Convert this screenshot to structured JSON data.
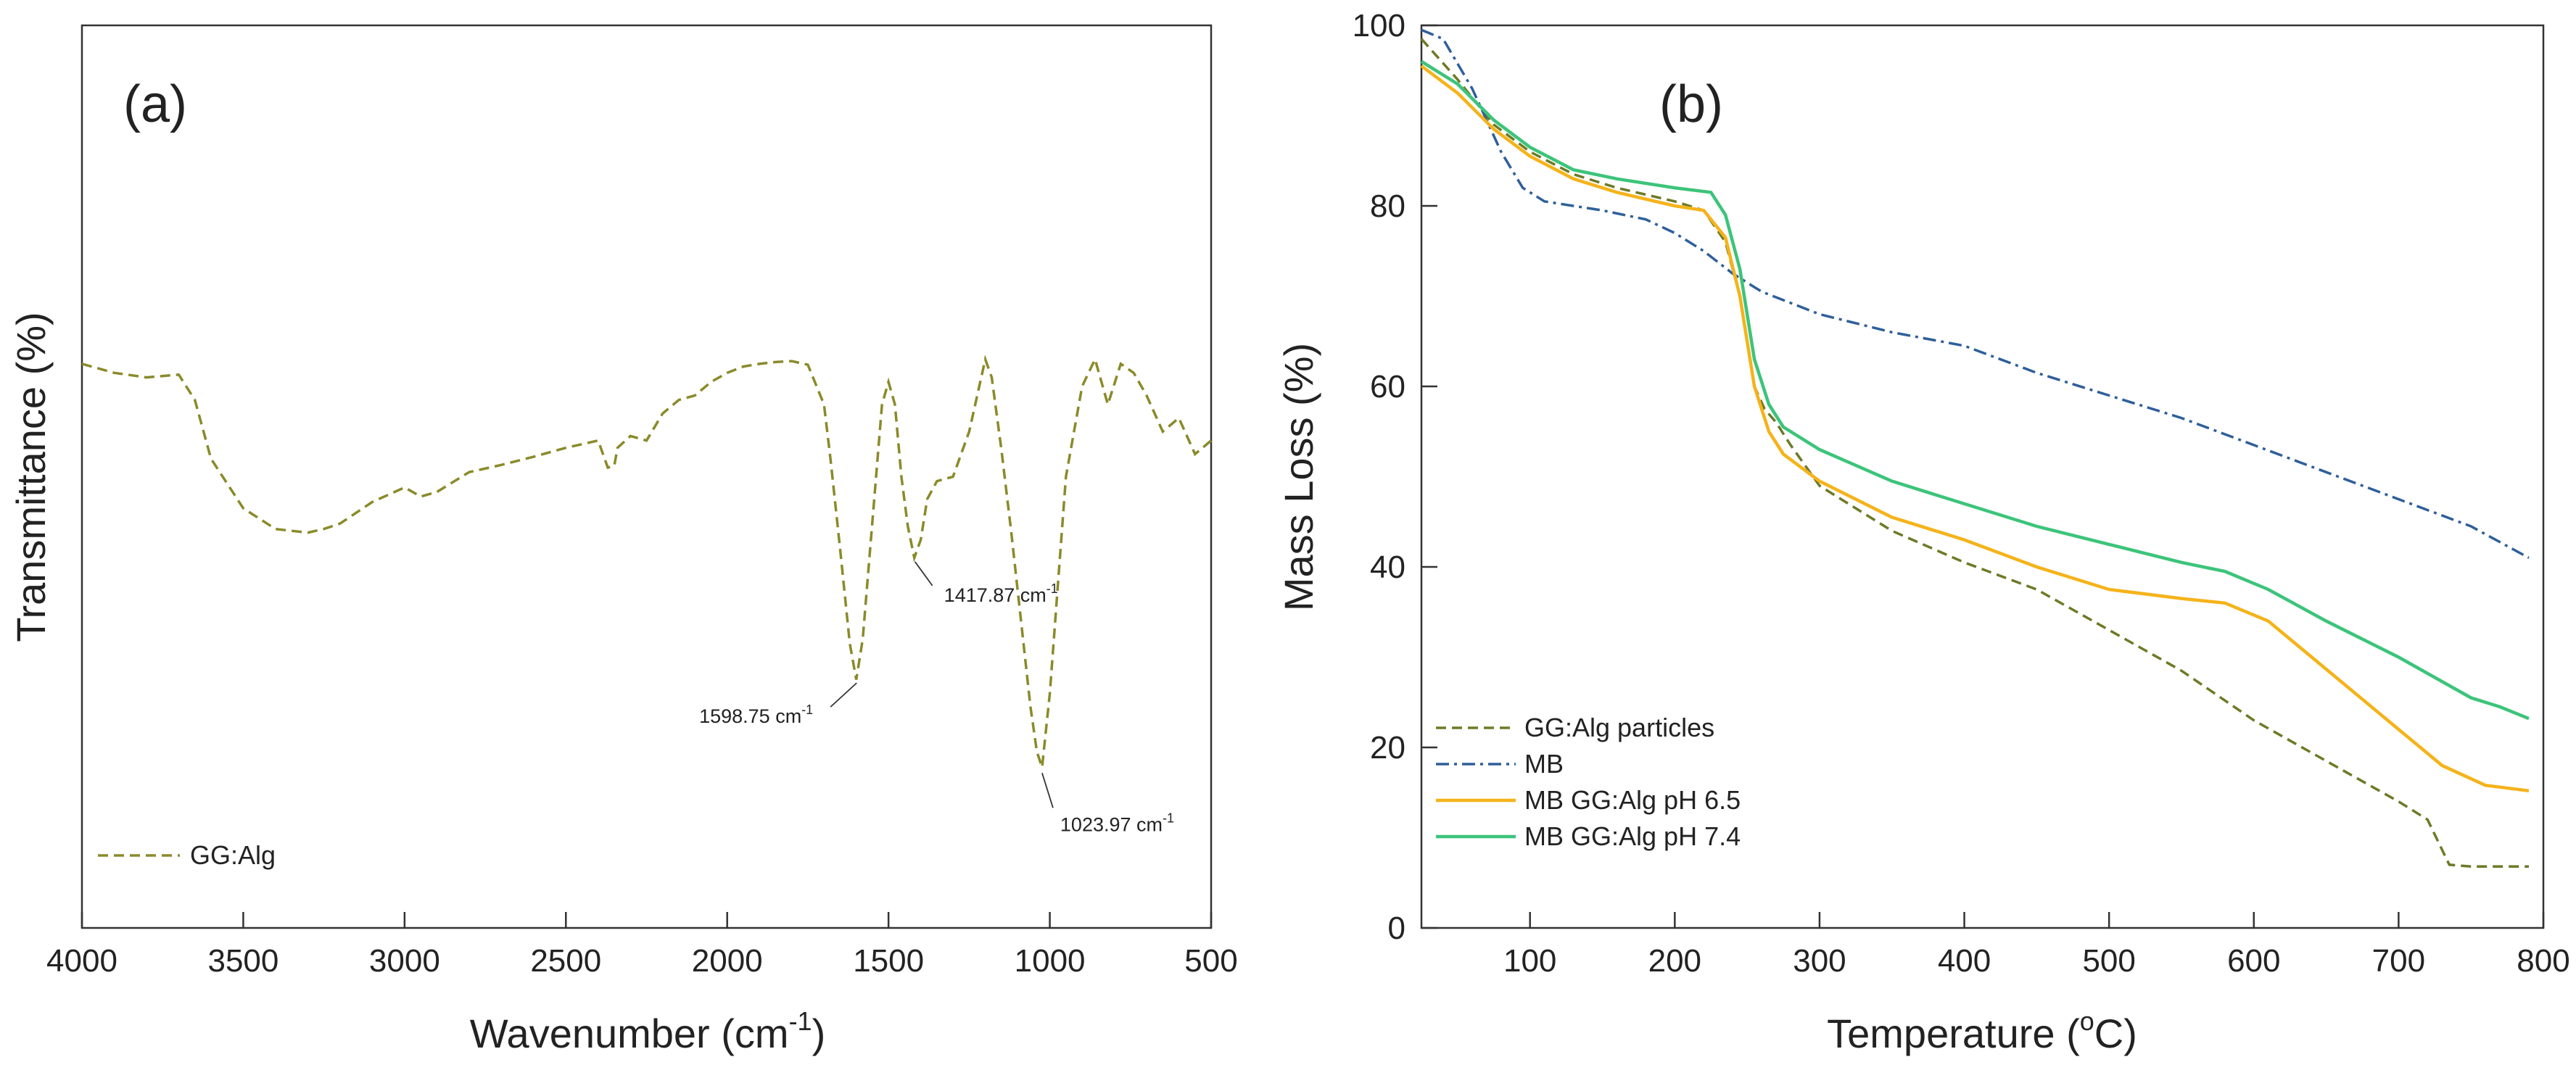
{
  "chart_data": [
    {
      "type": "line",
      "panel_label": "(a)",
      "xlabel": "Wavenumber (cm",
      "xlabel_sup": "-1",
      "xlabel_tail": ")",
      "ylabel": "Transmittance (%)",
      "xlim": [
        4000,
        500
      ],
      "xticks": [
        "4000",
        "3500",
        "3000",
        "2500",
        "2000",
        "1500",
        "1000",
        "500"
      ],
      "y_tick_labels_shown": false,
      "series": [
        {
          "name": "GG:Alg",
          "color": "#8a8a2a",
          "style": "dashed",
          "x": [
            4000,
            3900,
            3800,
            3700,
            3650,
            3600,
            3500,
            3400,
            3300,
            3250,
            3200,
            3100,
            3000,
            2950,
            2900,
            2800,
            2700,
            2600,
            2500,
            2400,
            2370,
            2350,
            2340,
            2300,
            2250,
            2200,
            2150,
            2100,
            2050,
            2000,
            1950,
            1900,
            1850,
            1800,
            1750,
            1700,
            1680,
            1650,
            1620,
            1600,
            1580,
            1550,
            1520,
            1500,
            1480,
            1460,
            1440,
            1420,
            1400,
            1380,
            1350,
            1300,
            1250,
            1200,
            1180,
            1150,
            1120,
            1100,
            1080,
            1060,
            1040,
            1024,
            1000,
            950,
            900,
            860,
            820,
            780,
            740,
            700,
            650,
            600,
            550,
            500
          ],
          "y": [
            62.5,
            61.5,
            61.0,
            61.3,
            58.5,
            52.0,
            46.5,
            44.2,
            43.8,
            44.2,
            44.8,
            47.2,
            48.8,
            47.8,
            48.3,
            50.5,
            51.3,
            52.2,
            53.2,
            54.0,
            51.0,
            51.2,
            53.2,
            54.5,
            54.0,
            57.0,
            58.5,
            59.0,
            60.5,
            61.5,
            62.2,
            62.5,
            62.7,
            62.8,
            62.4,
            58.0,
            52.0,
            42.0,
            31.5,
            27.5,
            32.0,
            45.0,
            58.0,
            60.5,
            58.0,
            50.0,
            44.5,
            41.0,
            43.0,
            47.5,
            49.5,
            50.0,
            55.0,
            63.0,
            61.0,
            53.0,
            44.0,
            37.5,
            31.0,
            24.5,
            19.5,
            17.8,
            26.0,
            50.0,
            60.0,
            63.0,
            58.0,
            62.5,
            61.5,
            59.0,
            55.0,
            56.5,
            52.5,
            54.0
          ]
        }
      ],
      "annotations": [
        {
          "label": "1598.75 cm",
          "sup": "-1",
          "x": 1598.75
        },
        {
          "label": "1417.87 cm",
          "sup": "-1",
          "x": 1417.87
        },
        {
          "label": "1023.97 cm",
          "sup": "-1",
          "x": 1023.97
        }
      ],
      "legend": {
        "placement": "bottom-left",
        "entries": [
          "GG:Alg"
        ]
      },
      "grid": false
    },
    {
      "type": "line",
      "panel_label": "(b)",
      "xlabel": "Temperature (",
      "xlabel_sup": "o",
      "xlabel_tail": "C)",
      "ylabel": "Mass Loss (%)",
      "xlim": [
        25,
        800
      ],
      "ylim": [
        0,
        100
      ],
      "xticks": [
        "100",
        "200",
        "300",
        "400",
        "500",
        "600",
        "700",
        "800"
      ],
      "yticks": [
        "0",
        "20",
        "40",
        "60",
        "80",
        "100"
      ],
      "series": [
        {
          "name": "GG:Alg particles",
          "color": "#6e7a26",
          "style": "dashed",
          "x": [
            25,
            50,
            75,
            100,
            130,
            160,
            200,
            220,
            235,
            245,
            255,
            262,
            270,
            280,
            300,
            350,
            400,
            450,
            500,
            550,
            600,
            650,
            700,
            720,
            735,
            750,
            790
          ],
          "y": [
            98.5,
            94,
            89,
            86,
            83.5,
            82,
            80.5,
            79.5,
            76,
            70,
            60,
            57.5,
            56,
            53.5,
            49,
            44,
            40.5,
            37.5,
            33,
            28.5,
            23,
            18.5,
            14,
            12,
            7,
            6.8,
            6.8
          ]
        },
        {
          "name": "MB",
          "color": "#2f5f9a",
          "style": "dashdot",
          "x": [
            25,
            40,
            60,
            80,
            95,
            110,
            150,
            180,
            200,
            220,
            240,
            260,
            300,
            350,
            400,
            450,
            500,
            550,
            600,
            650,
            700,
            750,
            790
          ],
          "y": [
            99.5,
            98.5,
            93,
            86,
            82,
            80.5,
            79.5,
            78.5,
            77,
            75,
            72.5,
            70.5,
            68,
            66,
            64.5,
            61.5,
            59,
            56.5,
            53.5,
            50.5,
            47.5,
            44.5,
            41
          ]
        },
        {
          "name": "MB GG:Alg pH 6.5",
          "color": "#f5b31a",
          "style": "solid",
          "x": [
            25,
            50,
            75,
            100,
            130,
            160,
            200,
            220,
            235,
            245,
            255,
            265,
            275,
            300,
            350,
            400,
            450,
            500,
            550,
            580,
            610,
            640,
            670,
            700,
            730,
            760,
            790
          ],
          "y": [
            95.5,
            92.5,
            88.5,
            85.5,
            83,
            81.5,
            80,
            79.5,
            76.5,
            70,
            60,
            55,
            52.5,
            49.5,
            45.5,
            43,
            40,
            37.5,
            36.5,
            36,
            34,
            30,
            26,
            22,
            18,
            15.8,
            15.2
          ]
        },
        {
          "name": "MB GG:Alg pH 7.4",
          "color": "#3cc47a",
          "style": "solid",
          "x": [
            25,
            50,
            75,
            100,
            130,
            160,
            200,
            225,
            235,
            245,
            255,
            265,
            275,
            300,
            350,
            400,
            450,
            500,
            550,
            580,
            610,
            650,
            700,
            750,
            770,
            790
          ],
          "y": [
            96,
            93.5,
            89.5,
            86.5,
            84,
            83,
            82,
            81.5,
            79,
            73,
            63,
            58,
            55.5,
            53,
            49.5,
            47,
            44.5,
            42.5,
            40.5,
            39.5,
            37.5,
            34,
            30,
            25.5,
            24.5,
            23.2
          ]
        }
      ],
      "legend": {
        "placement": "bottom-left",
        "entries": [
          "GG:Alg particles",
          "MB",
          "MB GG:Alg pH 6.5",
          "MB GG:Alg pH 7.4"
        ]
      },
      "grid": false
    }
  ]
}
